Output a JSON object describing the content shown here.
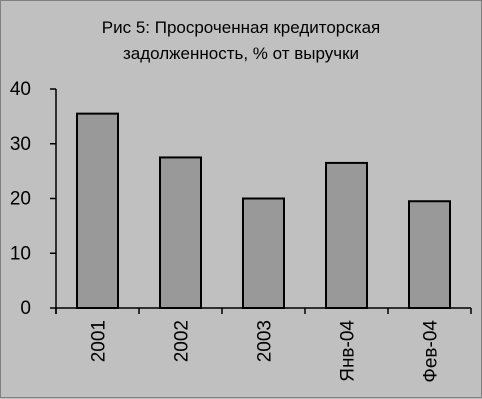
{
  "chart_data": {
    "type": "bar",
    "title": "Рис 5: Просроченная кредиторская задолженность, % от выручки",
    "title_lines": [
      "Рис 5: Просроченная кредиторская",
      "задолженность, % от выручки"
    ],
    "xlabel": "",
    "ylabel": "",
    "categories": [
      "2001",
      "2002",
      "2003",
      "Янв-04",
      "Фев-04"
    ],
    "values": [
      35.5,
      27.5,
      20,
      26.5,
      19.5
    ],
    "ylim": [
      0,
      40
    ],
    "yticks": [
      0,
      10,
      20,
      30,
      40
    ],
    "grid": false,
    "legend": "none",
    "colors": {
      "background": "#c0c0c0",
      "bar_fill": "#999999",
      "bar_stroke": "#000000",
      "axis": "#000000"
    }
  }
}
